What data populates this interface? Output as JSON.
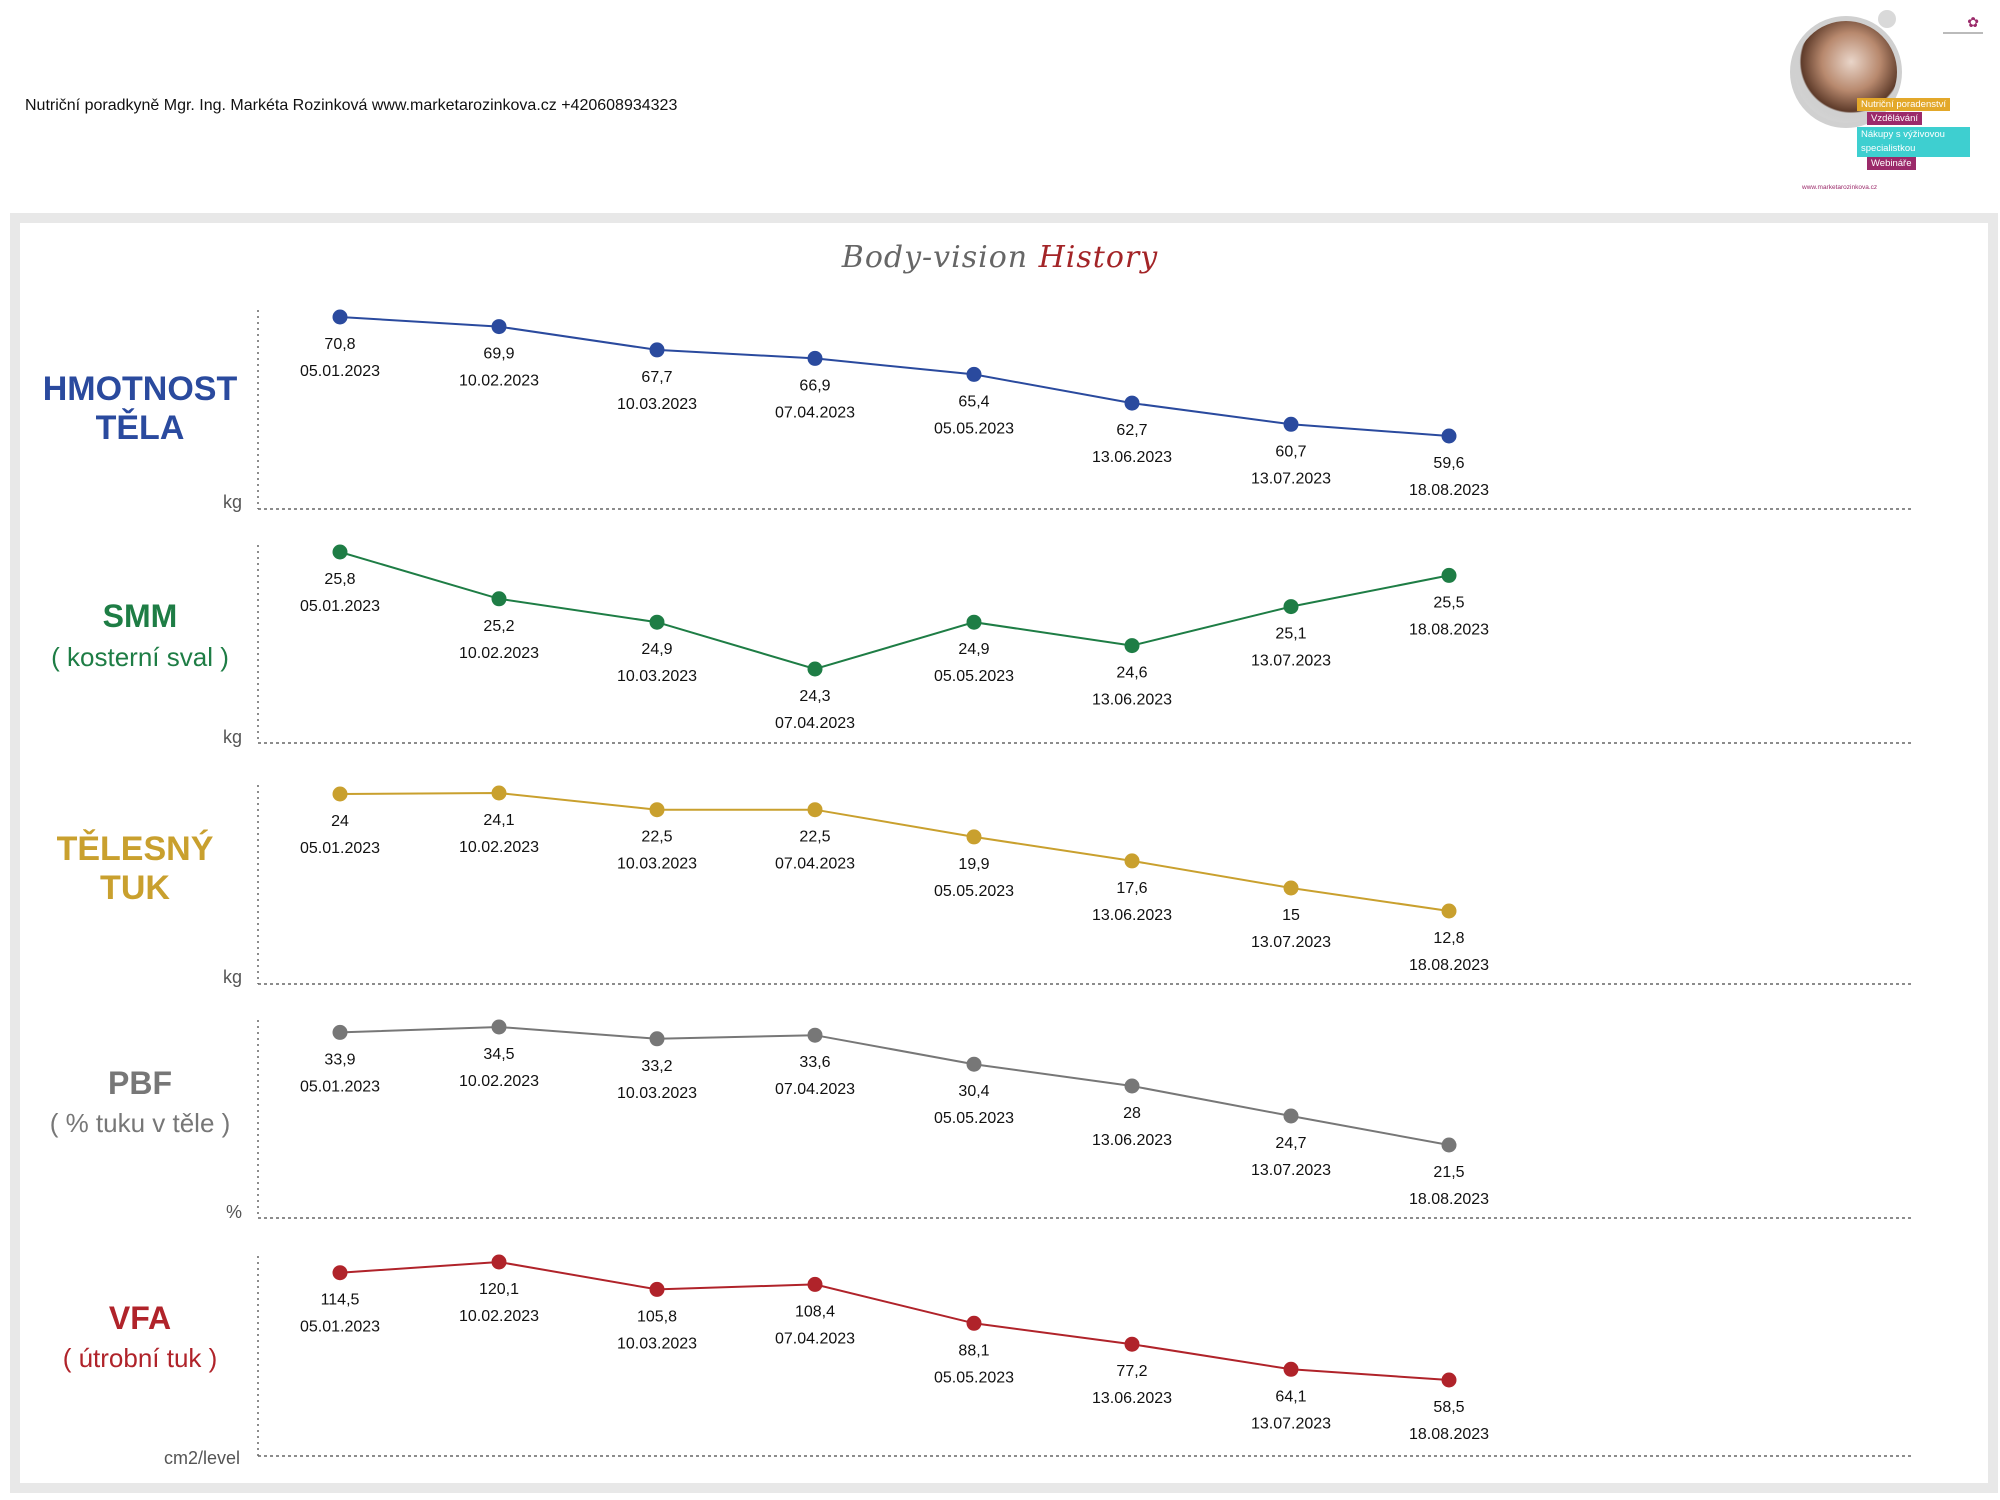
{
  "header": {
    "text": "Nutriční poradkyně Mgr. Ing. Markéta Rozinková www.marketarozinkova.cz +420608934323"
  },
  "logo": {
    "tags": [
      "Nutriční poradenství",
      "Vzdělávání",
      "Nákupy s výživovou specialistkou",
      "Webináře"
    ],
    "url": "www.marketarozinkova.cz"
  },
  "title": {
    "part1": "Body-vision",
    "part2": "History"
  },
  "colors": {
    "weight": "#2a4a9e",
    "smm": "#1e7d45",
    "fat": "#c9a02e",
    "pbf": "#777777",
    "vfa": "#b0232a"
  },
  "panels": [
    {
      "key": "weight",
      "label": "HMOTNOST TĚLA",
      "sub": "",
      "unit": "kg"
    },
    {
      "key": "smm",
      "label": "SMM",
      "sub": "( kosterní sval )",
      "unit": "kg"
    },
    {
      "key": "fat",
      "label": "TĚLESNÝ TUK",
      "sub": "",
      "unit": "kg"
    },
    {
      "key": "pbf",
      "label": "PBF",
      "sub": "( % tuku v těle )",
      "unit": "%"
    },
    {
      "key": "vfa",
      "label": "VFA",
      "sub": "( útrobní tuk )",
      "unit": "cm2/level"
    }
  ],
  "chart_data": [
    {
      "type": "line",
      "name": "HMOTNOST TĚLA",
      "unit": "kg",
      "x": [
        "05.01.2023",
        "10.02.2023",
        "10.03.2023",
        "07.04.2023",
        "05.05.2023",
        "13.06.2023",
        "13.07.2023",
        "18.08.2023"
      ],
      "y": [
        70.8,
        69.9,
        67.7,
        66.9,
        65.4,
        62.7,
        60.7,
        59.6
      ],
      "labels": [
        "70,8",
        "69,9",
        "67,7",
        "66,9",
        "65,4",
        "62,7",
        "60,7",
        "59,6"
      ]
    },
    {
      "type": "line",
      "name": "SMM",
      "unit": "kg",
      "x": [
        "05.01.2023",
        "10.02.2023",
        "10.03.2023",
        "07.04.2023",
        "05.05.2023",
        "13.06.2023",
        "13.07.2023",
        "18.08.2023"
      ],
      "y": [
        25.8,
        25.2,
        24.9,
        24.3,
        24.9,
        24.6,
        25.1,
        25.5
      ],
      "labels": [
        "25,8",
        "25,2",
        "24,9",
        "24,3",
        "24,9",
        "24,6",
        "25,1",
        "25,5"
      ]
    },
    {
      "type": "line",
      "name": "TĚLESNÝ TUK",
      "unit": "kg",
      "x": [
        "05.01.2023",
        "10.02.2023",
        "10.03.2023",
        "07.04.2023",
        "05.05.2023",
        "13.06.2023",
        "13.07.2023",
        "18.08.2023"
      ],
      "y": [
        24,
        24.1,
        22.5,
        22.5,
        19.9,
        17.6,
        15,
        12.8
      ],
      "labels": [
        "24",
        "24,1",
        "22,5",
        "22,5",
        "19,9",
        "17,6",
        "15",
        "12,8"
      ]
    },
    {
      "type": "line",
      "name": "PBF",
      "unit": "%",
      "x": [
        "05.01.2023",
        "10.02.2023",
        "10.03.2023",
        "07.04.2023",
        "05.05.2023",
        "13.06.2023",
        "13.07.2023",
        "18.08.2023"
      ],
      "y": [
        33.9,
        34.5,
        33.2,
        33.6,
        30.4,
        28,
        24.7,
        21.5
      ],
      "labels": [
        "33,9",
        "34,5",
        "33,2",
        "33,6",
        "30,4",
        "28",
        "24,7",
        "21,5"
      ]
    },
    {
      "type": "line",
      "name": "VFA",
      "unit": "cm2/level",
      "x": [
        "05.01.2023",
        "10.02.2023",
        "10.03.2023",
        "07.04.2023",
        "05.05.2023",
        "13.06.2023",
        "13.07.2023",
        "18.08.2023"
      ],
      "y": [
        114.5,
        120.1,
        105.8,
        108.4,
        88.1,
        77.2,
        64.1,
        58.5
      ],
      "labels": [
        "114,5",
        "120,1",
        "105,8",
        "108,4",
        "88,1",
        "77,2",
        "64,1",
        "58,5"
      ]
    }
  ]
}
